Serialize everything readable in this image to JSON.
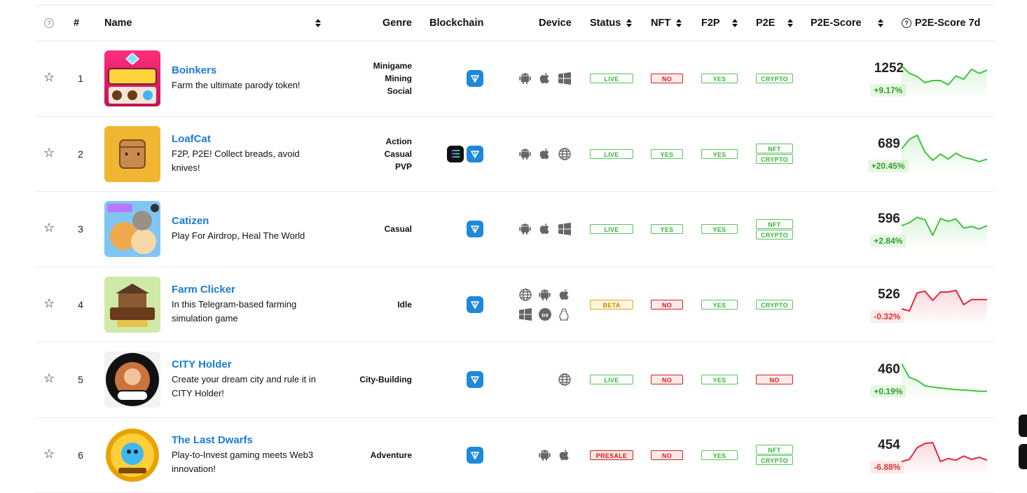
{
  "header": {
    "rank": "#",
    "name": "Name",
    "genre": "Genre",
    "blockchain": "Blockchain",
    "device": "Device",
    "status": "Status",
    "nft": "NFT",
    "f2p": "F2P",
    "p2e": "P2E",
    "score": "P2E-Score",
    "score7d": "P2E-Score 7d"
  },
  "rows": [
    {
      "rank": "1",
      "name": "Boinkers",
      "desc": "Farm the ultimate parody token!",
      "genres": [
        "Minigame",
        "Mining",
        "Social"
      ],
      "chains": [
        "ton"
      ],
      "devices": [
        "android-icon",
        "apple-icon",
        "windows-icon"
      ],
      "status": "LIVE",
      "nft": "NO",
      "f2p": "YES",
      "p2e": [
        "CRYPTO"
      ],
      "score": "1252",
      "delta": "+9.17%",
      "trend": "up",
      "spark": [
        80,
        62,
        55,
        40,
        45,
        45,
        35,
        56,
        48,
        72,
        62,
        70
      ]
    },
    {
      "rank": "2",
      "name": "LoafCat",
      "desc": "F2P, P2E! Collect breads, avoid knives!",
      "genres": [
        "Action",
        "Casual",
        "PVP"
      ],
      "chains": [
        "sol",
        "ton"
      ],
      "devices": [
        "android-icon",
        "apple-icon",
        "globe-icon"
      ],
      "status": "LIVE",
      "nft": "YES",
      "f2p": "YES",
      "p2e": [
        "NFT",
        "CRYPTO"
      ],
      "score": "689",
      "delta": "+20.45%",
      "trend": "up",
      "spark": [
        62,
        85,
        95,
        55,
        35,
        50,
        38,
        52,
        42,
        38,
        32,
        38
      ]
    },
    {
      "rank": "3",
      "name": "Catizen",
      "desc": "Play For Airdrop, Heal The World",
      "genres": [
        "Casual"
      ],
      "chains": [
        "ton"
      ],
      "devices": [
        "android-icon",
        "apple-icon",
        "windows-icon"
      ],
      "status": "LIVE",
      "nft": "YES",
      "f2p": "YES",
      "p2e": [
        "NFT",
        "CRYPTO"
      ],
      "score": "596",
      "delta": "+2.84%",
      "trend": "up",
      "spark": [
        58,
        65,
        78,
        72,
        35,
        75,
        68,
        74,
        52,
        56,
        50,
        58
      ]
    },
    {
      "rank": "4",
      "name": "Farm Clicker",
      "desc": "In this Telegram-based farming simulation game",
      "genres": [
        "Idle"
      ],
      "chains": [
        "ton"
      ],
      "devices": [
        "globe-icon",
        "android-icon",
        "apple-icon",
        "windows-icon",
        "macos-icon",
        "linux-icon"
      ],
      "status": "BETA",
      "nft": "NO",
      "f2p": "YES",
      "p2e": [
        "CRYPTO"
      ],
      "score": "526",
      "delta": "-0.32%",
      "trend": "down",
      "spark": [
        40,
        35,
        78,
        82,
        60,
        80,
        80,
        84,
        50,
        62,
        62,
        62
      ]
    },
    {
      "rank": "5",
      "name": "CITY Holder",
      "desc": "Create your dream city and rule it in CITY Holder!",
      "genres": [
        "City-Building"
      ],
      "chains": [
        "ton"
      ],
      "devices": [
        "globe-icon"
      ],
      "status": "LIVE",
      "nft": "NO",
      "f2p": "YES",
      "p2e": [
        "NO"
      ],
      "score": "460",
      "delta": "+0.19%",
      "trend": "up",
      "spark": [
        88,
        55,
        48,
        35,
        32,
        30,
        28,
        26,
        25,
        24,
        22,
        22
      ]
    },
    {
      "rank": "6",
      "name": "The Last Dwarfs",
      "desc": "Play-to-Invest gaming meets Web3 innovation!",
      "genres": [
        "Adventure"
      ],
      "chains": [
        "ton"
      ],
      "devices": [
        "android-icon",
        "apple-icon"
      ],
      "status": "PRESALE",
      "nft": "NO",
      "f2p": "YES",
      "p2e": [
        "NFT",
        "CRYPTO"
      ],
      "score": "454",
      "delta": "-6.88%",
      "trend": "down",
      "spark": [
        35,
        40,
        68,
        78,
        80,
        35,
        42,
        38,
        48,
        40,
        45,
        38
      ]
    }
  ],
  "colors": {
    "up": "#3dc43d",
    "down": "#e5253f",
    "link": "#1a7bd8",
    "ton": "#1e88d9"
  }
}
